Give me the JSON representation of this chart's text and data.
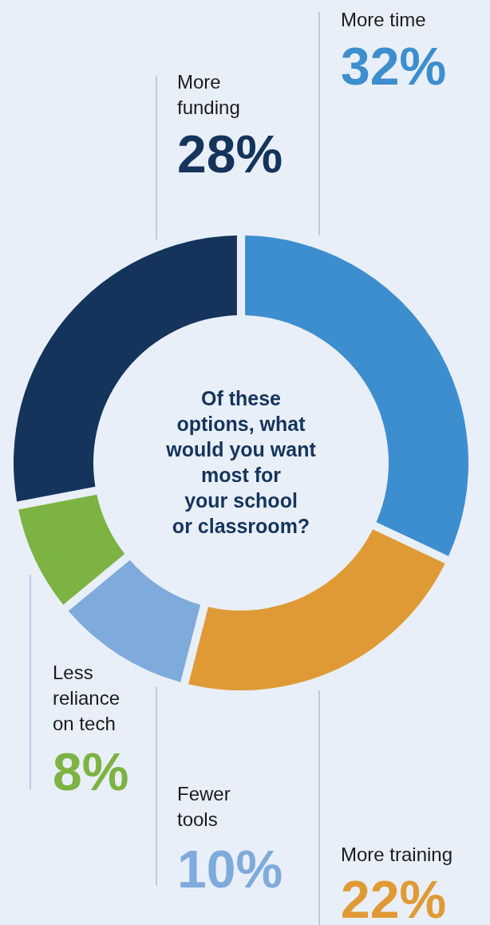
{
  "chart_data": {
    "type": "donut",
    "title": "Of these\noptions, what\nwould you want\nmost for\nyour school\nor classroom?",
    "categories": [
      "More time",
      "More training",
      "Fewer\ntools",
      "Less\nreliance\non tech",
      "More\nfunding"
    ],
    "values": [
      32,
      22,
      10,
      8,
      28
    ],
    "value_labels": [
      "32%",
      "22%",
      "10%",
      "8%",
      "28%"
    ],
    "colors": [
      "#3d8ecf",
      "#e09a35",
      "#7faadc",
      "#7cb342",
      "#14345c"
    ]
  }
}
